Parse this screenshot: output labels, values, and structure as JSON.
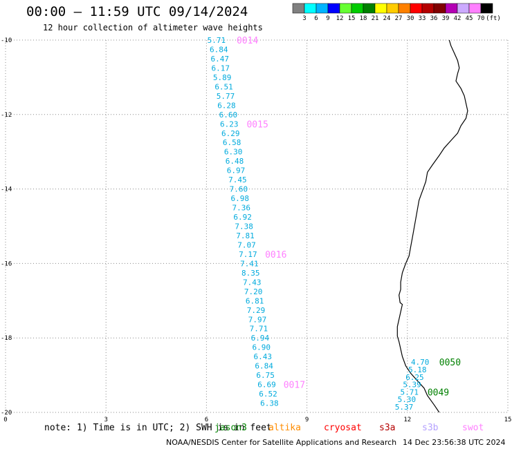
{
  "title": "00:00 – 11:59 UTC 09/14/2024",
  "subtitle": "12 hour collection of altimeter wave heights",
  "colorbar": {
    "colors": [
      "#808080",
      "#00ffff",
      "#00b4ff",
      "#0000ff",
      "#66ff33",
      "#00cc00",
      "#008000",
      "#ffff00",
      "#ffcc00",
      "#ff8000",
      "#ff0000",
      "#b40000",
      "#800000",
      "#b400b4",
      "#ccaaff",
      "#ff80ff",
      "#000000"
    ],
    "labels": [
      "3",
      "6",
      "9",
      "12",
      "15",
      "18",
      "21",
      "24",
      "27",
      "30",
      "33",
      "36",
      "39",
      "42",
      "45",
      "70"
    ],
    "unit": "(ft)"
  },
  "note": "note: 1) Time is in UTC; 2) SWH is in feet",
  "satellites": [
    {
      "name": "jason3",
      "color": "#008000"
    },
    {
      "name": "altika",
      "color": "#ff8c00"
    },
    {
      "name": "cryosat",
      "color": "#ff0000"
    },
    {
      "name": "s3a",
      "color": "#b40000"
    },
    {
      "name": "s3b",
      "color": "#b4a0ff"
    },
    {
      "name": "swot",
      "color": "#ff80ff"
    }
  ],
  "credit": "NOAA/NESDIS Center for Satellite Applications and Research",
  "credit_date": "14 Dec 23:56:38 UTC 2024",
  "chart_data": {
    "type": "map",
    "x_ticks": [
      "0",
      "3",
      "6",
      "9",
      "12",
      "15"
    ],
    "y_ticks": [
      "-10",
      "-12",
      "-14",
      "-16",
      "-18",
      "-20"
    ],
    "xlim": [
      0,
      15
    ],
    "ylim": [
      -20,
      -10
    ],
    "grid": true,
    "track_west": {
      "color": "#00aadd",
      "points": [
        {
          "lon": 6.3,
          "lat": -10.0,
          "swh": "5.71"
        },
        {
          "lon": 6.37,
          "lat": -10.25,
          "swh": "6.84"
        },
        {
          "lon": 6.4,
          "lat": -10.5,
          "swh": "6.47"
        },
        {
          "lon": 6.42,
          "lat": -10.75,
          "swh": "6.17"
        },
        {
          "lon": 6.47,
          "lat": -11.0,
          "swh": "5.89"
        },
        {
          "lon": 6.52,
          "lat": -11.25,
          "swh": "6.51"
        },
        {
          "lon": 6.57,
          "lat": -11.5,
          "swh": "5.77"
        },
        {
          "lon": 6.6,
          "lat": -11.75,
          "swh": "6.28"
        },
        {
          "lon": 6.65,
          "lat": -12.0,
          "swh": "6.60"
        },
        {
          "lon": 6.68,
          "lat": -12.25,
          "swh": "6.23"
        },
        {
          "lon": 6.72,
          "lat": -12.5,
          "swh": "6.29"
        },
        {
          "lon": 6.76,
          "lat": -12.75,
          "swh": "6.58"
        },
        {
          "lon": 6.8,
          "lat": -13.0,
          "swh": "6.30"
        },
        {
          "lon": 6.84,
          "lat": -13.25,
          "swh": "6.48"
        },
        {
          "lon": 6.88,
          "lat": -13.5,
          "swh": "6.97"
        },
        {
          "lon": 6.93,
          "lat": -13.75,
          "swh": "7.45"
        },
        {
          "lon": 6.96,
          "lat": -14.0,
          "swh": "7.60"
        },
        {
          "lon": 7.0,
          "lat": -14.25,
          "swh": "6.98"
        },
        {
          "lon": 7.04,
          "lat": -14.5,
          "swh": "7.36"
        },
        {
          "lon": 7.08,
          "lat": -14.75,
          "swh": "6.92"
        },
        {
          "lon": 7.12,
          "lat": -15.0,
          "swh": "7.38"
        },
        {
          "lon": 7.16,
          "lat": -15.25,
          "swh": "7.81"
        },
        {
          "lon": 7.2,
          "lat": -15.5,
          "swh": "7.07"
        },
        {
          "lon": 7.24,
          "lat": -15.75,
          "swh": "7.17"
        },
        {
          "lon": 7.28,
          "lat": -16.0,
          "swh": "7.41"
        },
        {
          "lon": 7.32,
          "lat": -16.25,
          "swh": "8.35"
        },
        {
          "lon": 7.36,
          "lat": -16.5,
          "swh": "7.43"
        },
        {
          "lon": 7.4,
          "lat": -16.75,
          "swh": "7.20"
        },
        {
          "lon": 7.44,
          "lat": -17.0,
          "swh": "6.81"
        },
        {
          "lon": 7.48,
          "lat": -17.25,
          "swh": "7.29"
        },
        {
          "lon": 7.52,
          "lat": -17.5,
          "swh": "7.97"
        },
        {
          "lon": 7.56,
          "lat": -17.75,
          "swh": "7.71"
        },
        {
          "lon": 7.6,
          "lat": -18.0,
          "swh": "6.94"
        },
        {
          "lon": 7.64,
          "lat": -18.25,
          "swh": "6.90"
        },
        {
          "lon": 7.68,
          "lat": -18.5,
          "swh": "6.43"
        },
        {
          "lon": 7.72,
          "lat": -18.75,
          "swh": "6.84"
        },
        {
          "lon": 7.76,
          "lat": -19.0,
          "swh": "6.75"
        },
        {
          "lon": 7.8,
          "lat": -19.25,
          "swh": "6.69"
        },
        {
          "lon": 7.84,
          "lat": -19.5,
          "swh": "6.52"
        },
        {
          "lon": 7.88,
          "lat": -19.75,
          "swh": "6.38"
        }
      ]
    },
    "track_east": {
      "color": "#00aadd",
      "points": [
        {
          "lon": 12.38,
          "lat": -18.65,
          "swh": "4.70"
        },
        {
          "lon": 12.3,
          "lat": -18.85,
          "swh": "5.18"
        },
        {
          "lon": 12.22,
          "lat": -19.05,
          "swh": "6.25"
        },
        {
          "lon": 12.14,
          "lat": -19.25,
          "swh": "5.39"
        },
        {
          "lon": 12.06,
          "lat": -19.45,
          "swh": "5.71"
        },
        {
          "lon": 11.98,
          "lat": -19.65,
          "swh": "5.30"
        },
        {
          "lon": 11.9,
          "lat": -19.85,
          "swh": "5.37"
        }
      ]
    },
    "time_labels": [
      {
        "text": "0014",
        "lon": 6.9,
        "lat": -10.0,
        "color": "#ff80ff"
      },
      {
        "text": "0015",
        "lon": 7.2,
        "lat": -12.25,
        "color": "#ff80ff"
      },
      {
        "text": "0016",
        "lon": 7.75,
        "lat": -15.75,
        "color": "#ff80ff"
      },
      {
        "text": "0017",
        "lon": 8.3,
        "lat": -19.25,
        "color": "#ff80ff"
      },
      {
        "text": "0050",
        "lon": 12.95,
        "lat": -18.65,
        "color": "#008000"
      },
      {
        "text": "0049",
        "lon": 12.6,
        "lat": -19.45,
        "color": "#008000"
      }
    ],
    "coastline": [
      [
        13.25,
        -10.0
      ],
      [
        13.3,
        -10.15
      ],
      [
        13.4,
        -10.35
      ],
      [
        13.5,
        -10.55
      ],
      [
        13.55,
        -10.75
      ],
      [
        13.5,
        -10.9
      ],
      [
        13.45,
        -11.1
      ],
      [
        13.6,
        -11.3
      ],
      [
        13.7,
        -11.5
      ],
      [
        13.75,
        -11.7
      ],
      [
        13.8,
        -11.9
      ],
      [
        13.75,
        -12.1
      ],
      [
        13.6,
        -12.3
      ],
      [
        13.5,
        -12.5
      ],
      [
        13.3,
        -12.7
      ],
      [
        13.1,
        -12.9
      ],
      [
        12.95,
        -13.1
      ],
      [
        12.75,
        -13.35
      ],
      [
        12.6,
        -13.55
      ],
      [
        12.55,
        -13.8
      ],
      [
        12.45,
        -14.05
      ],
      [
        12.35,
        -14.3
      ],
      [
        12.3,
        -14.55
      ],
      [
        12.25,
        -14.8
      ],
      [
        12.2,
        -15.05
      ],
      [
        12.15,
        -15.3
      ],
      [
        12.1,
        -15.55
      ],
      [
        12.05,
        -15.8
      ],
      [
        11.95,
        -16.0
      ],
      [
        11.85,
        -16.25
      ],
      [
        11.8,
        -16.5
      ],
      [
        11.8,
        -16.7
      ],
      [
        11.75,
        -16.85
      ],
      [
        11.78,
        -17.05
      ],
      [
        11.85,
        -17.1
      ],
      [
        11.8,
        -17.3
      ],
      [
        11.75,
        -17.5
      ],
      [
        11.7,
        -17.7
      ],
      [
        11.7,
        -17.95
      ],
      [
        11.75,
        -18.1
      ],
      [
        11.8,
        -18.3
      ],
      [
        11.85,
        -18.5
      ],
      [
        11.95,
        -18.75
      ],
      [
        12.1,
        -18.95
      ],
      [
        12.3,
        -19.15
      ],
      [
        12.5,
        -19.35
      ],
      [
        12.6,
        -19.55
      ],
      [
        12.8,
        -19.8
      ],
      [
        12.95,
        -20.0
      ]
    ]
  }
}
